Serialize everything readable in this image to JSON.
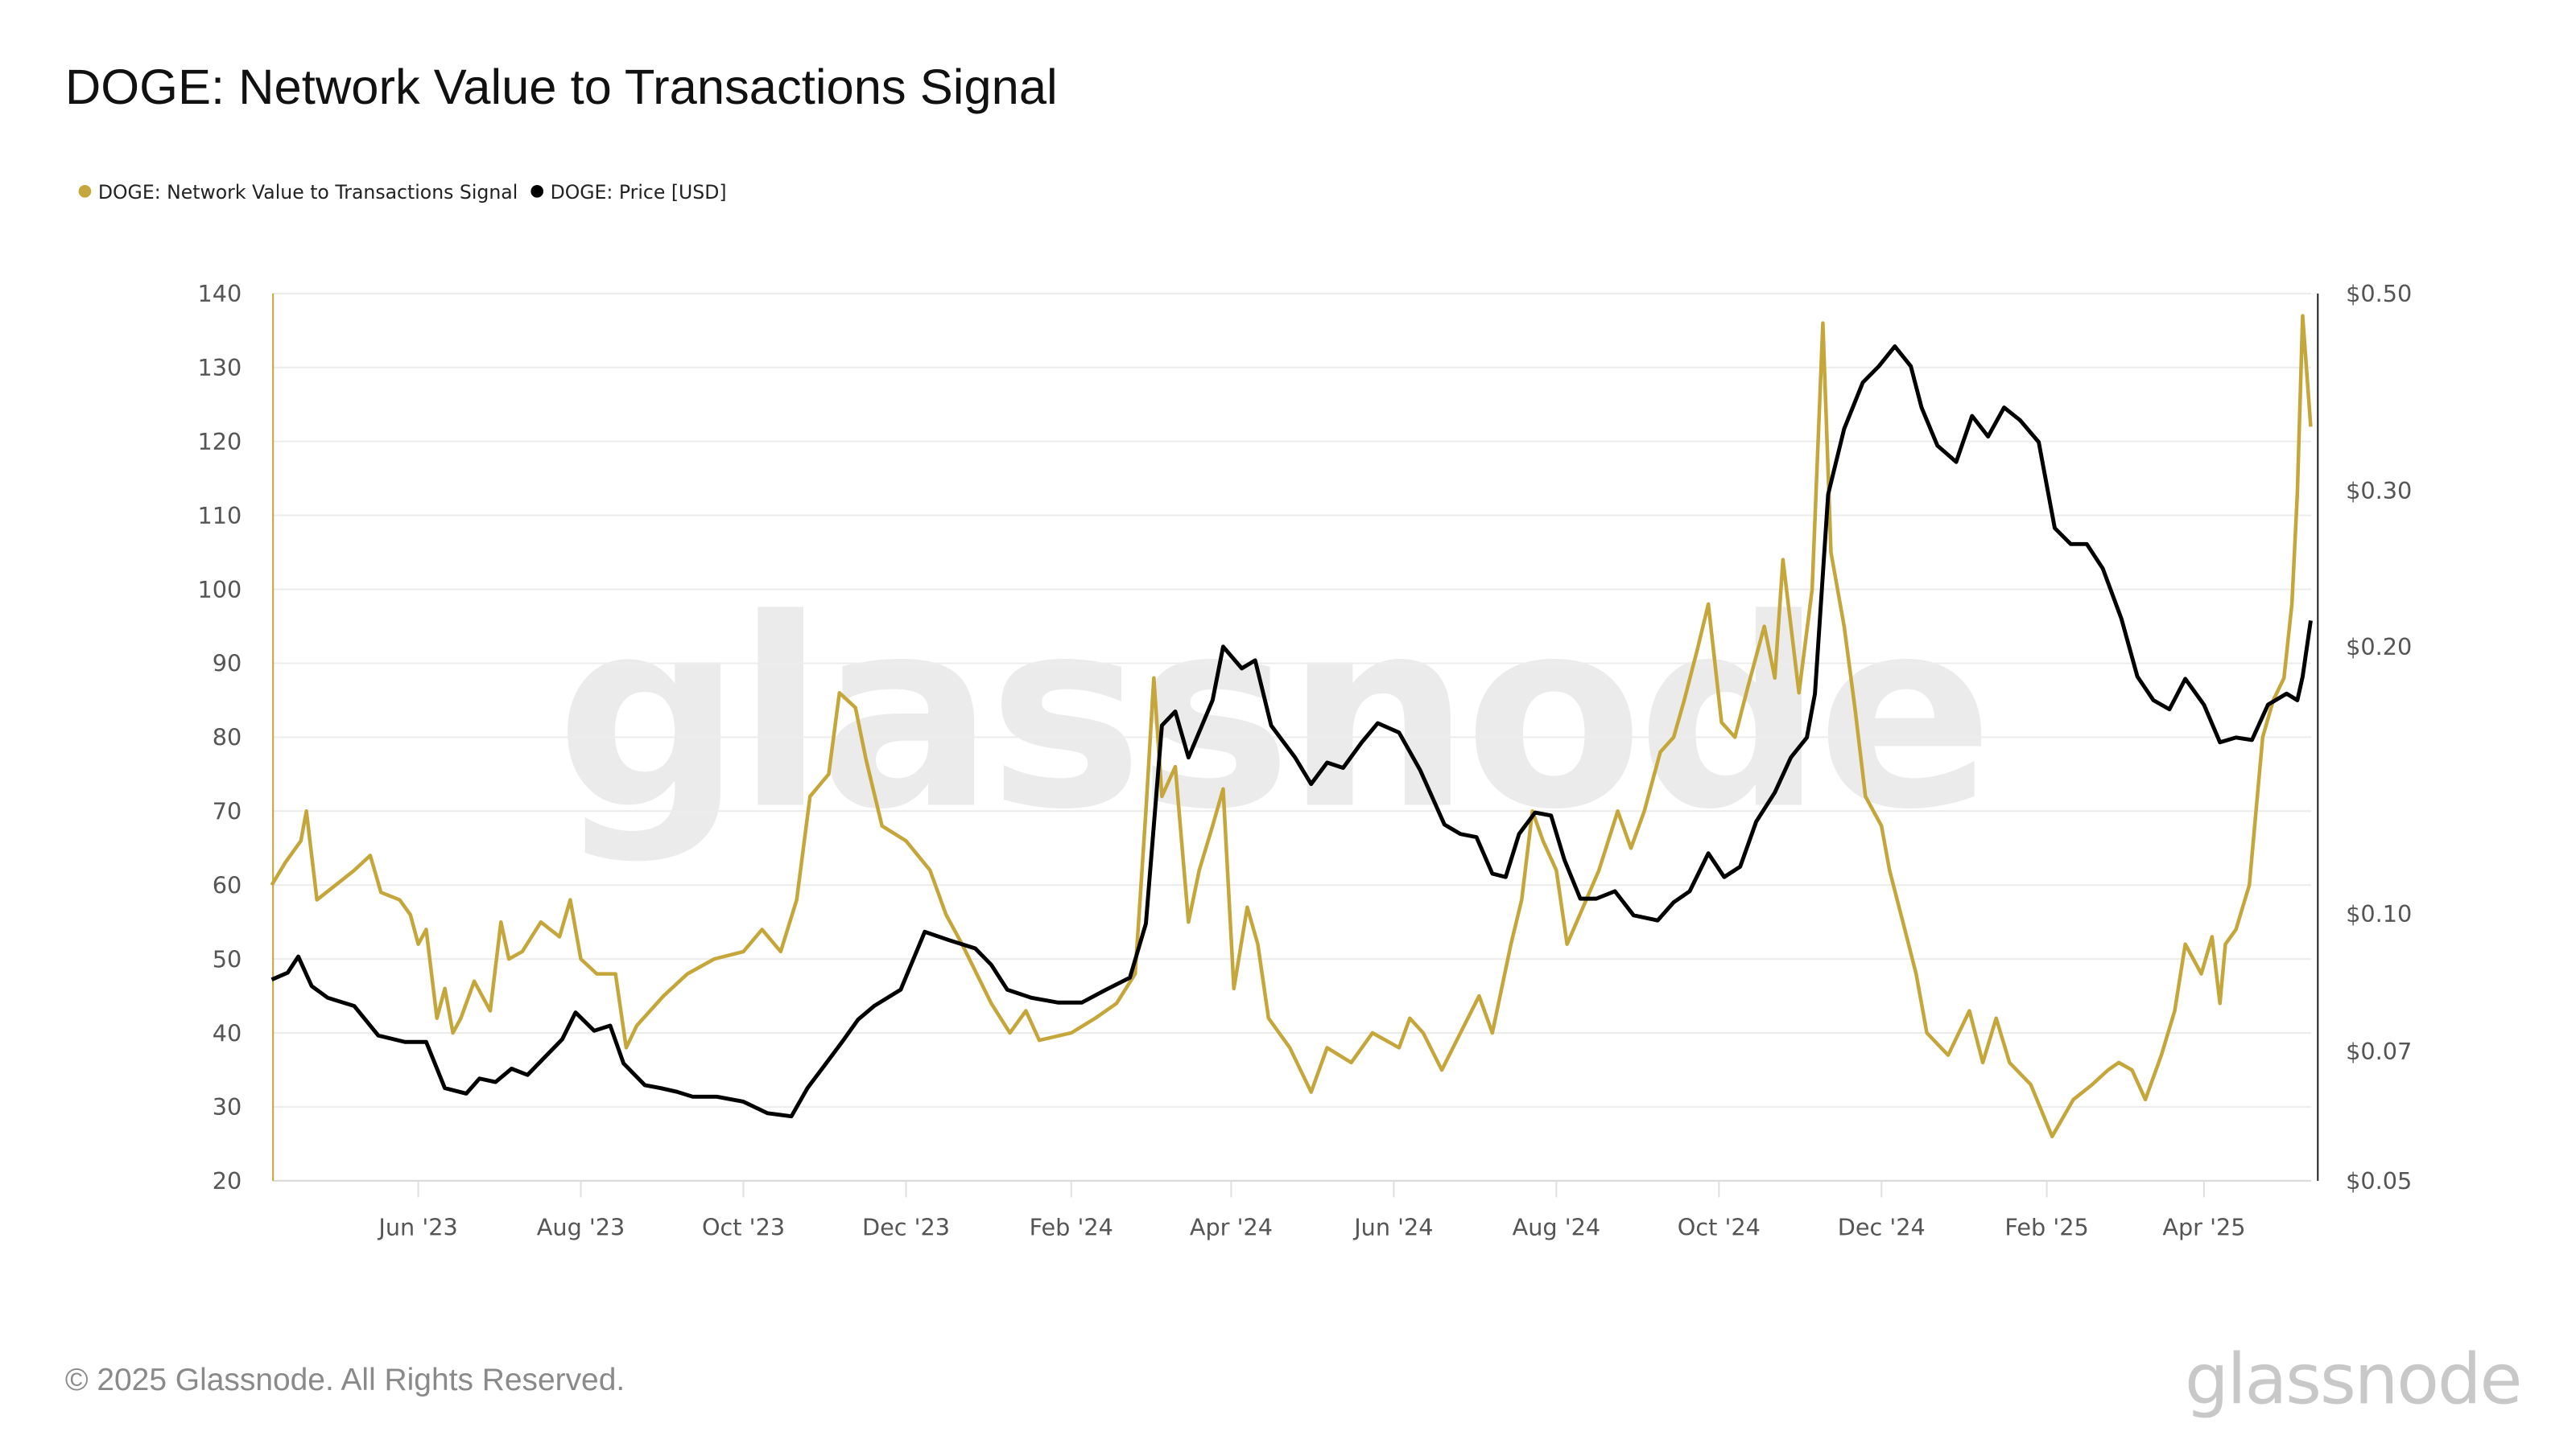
{
  "footer": {
    "copyright": "© 2025 Glassnode. All Rights Reserved.",
    "logo": "glassnode"
  },
  "watermark": "glassnode",
  "colors": {
    "nvts": "#c5a63a",
    "price": "#000000",
    "grid": "#ececec"
  },
  "chart_data": {
    "type": "line",
    "title": "DOGE: Network Value to Transactions Signal",
    "legend_position": "top-left",
    "grid": true,
    "x_ticks": [
      "Jun '23",
      "Aug '23",
      "Oct '23",
      "Dec '23",
      "Feb '24",
      "Apr '24",
      "Jun '24",
      "Aug '24",
      "Oct '24",
      "Dec '24",
      "Feb '25",
      "Apr '25"
    ],
    "x_tick_dates": [
      "2023-06-01",
      "2023-08-01",
      "2023-10-01",
      "2023-12-01",
      "2024-02-01",
      "2024-04-01",
      "2024-06-01",
      "2024-08-01",
      "2024-10-01",
      "2024-12-01",
      "2025-02-01",
      "2025-04-01"
    ],
    "xlim": [
      "2023-04-07",
      "2025-05-11"
    ],
    "y_left": {
      "ylim": [
        20,
        140
      ],
      "ticks": [
        20,
        30,
        40,
        50,
        60,
        70,
        80,
        90,
        100,
        110,
        120,
        130,
        140
      ],
      "tick_labels": [
        "20",
        "30",
        "40",
        "50",
        "60",
        "70",
        "80",
        "90",
        "100",
        "110",
        "120",
        "130",
        "140"
      ]
    },
    "y_right": {
      "scale": "log",
      "ylim": [
        0.05,
        0.5
      ],
      "ticks": [
        0.05,
        0.07,
        0.1,
        0.2,
        0.3,
        0.5
      ],
      "tick_labels": [
        "$0.05",
        "$0.07",
        "$0.10",
        "$0.20",
        "$0.30",
        "$0.50"
      ]
    },
    "series": [
      {
        "name": "DOGE: Network Value to Transactions Signal",
        "axis": "left",
        "points": [
          [
            "2023-04-07",
            60
          ],
          [
            "2023-04-12",
            63
          ],
          [
            "2023-04-18",
            66
          ],
          [
            "2023-04-20",
            70
          ],
          [
            "2023-04-24",
            58
          ],
          [
            "2023-05-01",
            60
          ],
          [
            "2023-05-08",
            62
          ],
          [
            "2023-05-14",
            64
          ],
          [
            "2023-05-18",
            59
          ],
          [
            "2023-05-25",
            58
          ],
          [
            "2023-05-29",
            56
          ],
          [
            "2023-06-01",
            52
          ],
          [
            "2023-06-04",
            54
          ],
          [
            "2023-06-08",
            42
          ],
          [
            "2023-06-11",
            46
          ],
          [
            "2023-06-14",
            40
          ],
          [
            "2023-06-17",
            42
          ],
          [
            "2023-06-22",
            47
          ],
          [
            "2023-06-28",
            43
          ],
          [
            "2023-07-02",
            55
          ],
          [
            "2023-07-05",
            50
          ],
          [
            "2023-07-10",
            51
          ],
          [
            "2023-07-17",
            55
          ],
          [
            "2023-07-24",
            53
          ],
          [
            "2023-07-28",
            58
          ],
          [
            "2023-08-01",
            50
          ],
          [
            "2023-08-07",
            48
          ],
          [
            "2023-08-14",
            48
          ],
          [
            "2023-08-18",
            38
          ],
          [
            "2023-08-22",
            41
          ],
          [
            "2023-09-01",
            45
          ],
          [
            "2023-09-10",
            48
          ],
          [
            "2023-09-20",
            50
          ],
          [
            "2023-10-01",
            51
          ],
          [
            "2023-10-08",
            54
          ],
          [
            "2023-10-15",
            51
          ],
          [
            "2023-10-21",
            58
          ],
          [
            "2023-10-26",
            72
          ],
          [
            "2023-11-02",
            75
          ],
          [
            "2023-11-06",
            86
          ],
          [
            "2023-11-12",
            84
          ],
          [
            "2023-11-16",
            77
          ],
          [
            "2023-11-22",
            68
          ],
          [
            "2023-12-01",
            66
          ],
          [
            "2023-12-10",
            62
          ],
          [
            "2023-12-16",
            56
          ],
          [
            "2023-12-22",
            52
          ],
          [
            "2024-01-02",
            44
          ],
          [
            "2024-01-09",
            40
          ],
          [
            "2024-01-15",
            43
          ],
          [
            "2024-01-20",
            39
          ],
          [
            "2024-02-01",
            40
          ],
          [
            "2024-02-10",
            42
          ],
          [
            "2024-02-18",
            44
          ],
          [
            "2024-02-25",
            48
          ],
          [
            "2024-02-29",
            70
          ],
          [
            "2024-03-03",
            88
          ],
          [
            "2024-03-06",
            72
          ],
          [
            "2024-03-11",
            76
          ],
          [
            "2024-03-16",
            55
          ],
          [
            "2024-03-20",
            62
          ],
          [
            "2024-03-25",
            68
          ],
          [
            "2024-03-29",
            73
          ],
          [
            "2024-04-02",
            46
          ],
          [
            "2024-04-07",
            57
          ],
          [
            "2024-04-11",
            52
          ],
          [
            "2024-04-15",
            42
          ],
          [
            "2024-04-23",
            38
          ],
          [
            "2024-05-01",
            32
          ],
          [
            "2024-05-07",
            38
          ],
          [
            "2024-05-16",
            36
          ],
          [
            "2024-05-24",
            40
          ],
          [
            "2024-06-03",
            38
          ],
          [
            "2024-06-07",
            42
          ],
          [
            "2024-06-12",
            40
          ],
          [
            "2024-06-19",
            35
          ],
          [
            "2024-06-26",
            40
          ],
          [
            "2024-07-03",
            45
          ],
          [
            "2024-07-08",
            40
          ],
          [
            "2024-07-15",
            52
          ],
          [
            "2024-07-19",
            58
          ],
          [
            "2024-07-23",
            70
          ],
          [
            "2024-07-27",
            66
          ],
          [
            "2024-08-01",
            62
          ],
          [
            "2024-08-05",
            52
          ],
          [
            "2024-08-11",
            57
          ],
          [
            "2024-08-17",
            62
          ],
          [
            "2024-08-24",
            70
          ],
          [
            "2024-08-29",
            65
          ],
          [
            "2024-09-03",
            70
          ],
          [
            "2024-09-09",
            78
          ],
          [
            "2024-09-14",
            80
          ],
          [
            "2024-09-18",
            85
          ],
          [
            "2024-09-23",
            92
          ],
          [
            "2024-09-27",
            98
          ],
          [
            "2024-10-02",
            82
          ],
          [
            "2024-10-07",
            80
          ],
          [
            "2024-10-12",
            87
          ],
          [
            "2024-10-18",
            95
          ],
          [
            "2024-10-22",
            88
          ],
          [
            "2024-10-25",
            104
          ],
          [
            "2024-10-31",
            86
          ],
          [
            "2024-11-05",
            100
          ],
          [
            "2024-11-09",
            136
          ],
          [
            "2024-11-12",
            105
          ],
          [
            "2024-11-17",
            95
          ],
          [
            "2024-11-21",
            84
          ],
          [
            "2024-11-25",
            72
          ],
          [
            "2024-12-01",
            68
          ],
          [
            "2024-12-04",
            62
          ],
          [
            "2024-12-09",
            55
          ],
          [
            "2024-12-14",
            48
          ],
          [
            "2024-12-18",
            40
          ],
          [
            "2024-12-26",
            37
          ],
          [
            "2025-01-03",
            43
          ],
          [
            "2025-01-08",
            36
          ],
          [
            "2025-01-13",
            42
          ],
          [
            "2025-01-18",
            36
          ],
          [
            "2025-01-26",
            33
          ],
          [
            "2025-02-03",
            26
          ],
          [
            "2025-02-11",
            31
          ],
          [
            "2025-02-18",
            33
          ],
          [
            "2025-02-24",
            35
          ],
          [
            "2025-02-28",
            36
          ],
          [
            "2025-03-05",
            35
          ],
          [
            "2025-03-10",
            31
          ],
          [
            "2025-03-16",
            37
          ],
          [
            "2025-03-21",
            43
          ],
          [
            "2025-03-25",
            52
          ],
          [
            "2025-03-31",
            48
          ],
          [
            "2025-04-04",
            53
          ],
          [
            "2025-04-07",
            44
          ],
          [
            "2025-04-09",
            52
          ],
          [
            "2025-04-13",
            54
          ],
          [
            "2025-04-18",
            60
          ],
          [
            "2025-04-23",
            80
          ],
          [
            "2025-04-27",
            85
          ],
          [
            "2025-05-01",
            88
          ],
          [
            "2025-05-04",
            98
          ],
          [
            "2025-05-06",
            113
          ],
          [
            "2025-05-08",
            137
          ],
          [
            "2025-05-11",
            122
          ]
        ]
      },
      {
        "name": "DOGE: Price [USD]",
        "axis": "right",
        "points": [
          [
            "2023-04-07",
            0.0843
          ],
          [
            "2023-04-13",
            0.0858
          ],
          [
            "2023-04-17",
            0.0895
          ],
          [
            "2023-04-22",
            0.0829
          ],
          [
            "2023-04-28",
            0.0804
          ],
          [
            "2023-05-08",
            0.0787
          ],
          [
            "2023-05-17",
            0.0729
          ],
          [
            "2023-05-27",
            0.0717
          ],
          [
            "2023-06-04",
            0.0717
          ],
          [
            "2023-06-11",
            0.0636
          ],
          [
            "2023-06-19",
            0.0627
          ],
          [
            "2023-06-24",
            0.0652
          ],
          [
            "2023-06-30",
            0.0646
          ],
          [
            "2023-07-06",
            0.0669
          ],
          [
            "2023-07-12",
            0.0658
          ],
          [
            "2023-07-18",
            0.0687
          ],
          [
            "2023-07-25",
            0.0722
          ],
          [
            "2023-07-30",
            0.0774
          ],
          [
            "2023-08-06",
            0.0738
          ],
          [
            "2023-08-12",
            0.0748
          ],
          [
            "2023-08-17",
            0.0678
          ],
          [
            "2023-08-25",
            0.0641
          ],
          [
            "2023-08-31",
            0.0636
          ],
          [
            "2023-09-06",
            0.063
          ],
          [
            "2023-09-12",
            0.0622
          ],
          [
            "2023-09-21",
            0.0622
          ],
          [
            "2023-10-01",
            0.0614
          ],
          [
            "2023-10-10",
            0.0596
          ],
          [
            "2023-10-19",
            0.0591
          ],
          [
            "2023-10-25",
            0.0636
          ],
          [
            "2023-11-01",
            0.0678
          ],
          [
            "2023-11-07",
            0.0717
          ],
          [
            "2023-11-13",
            0.076
          ],
          [
            "2023-11-19",
            0.0787
          ],
          [
            "2023-11-29",
            0.0821
          ],
          [
            "2023-12-08",
            0.0954
          ],
          [
            "2023-12-17",
            0.0934
          ],
          [
            "2023-12-27",
            0.0914
          ],
          [
            "2024-01-02",
            0.0876
          ],
          [
            "2024-01-08",
            0.0821
          ],
          [
            "2024-01-17",
            0.0804
          ],
          [
            "2024-01-27",
            0.0794
          ],
          [
            "2024-02-05",
            0.0794
          ],
          [
            "2024-02-14",
            0.0821
          ],
          [
            "2024-02-23",
            0.0847
          ],
          [
            "2024-02-29",
            0.0975
          ],
          [
            "2024-03-06",
            0.163
          ],
          [
            "2024-03-11",
            0.169
          ],
          [
            "2024-03-16",
            0.15
          ],
          [
            "2024-03-25",
            0.174
          ],
          [
            "2024-03-29",
            0.2
          ],
          [
            "2024-04-05",
            0.189
          ],
          [
            "2024-04-10",
            0.193
          ],
          [
            "2024-04-16",
            0.163
          ],
          [
            "2024-04-25",
            0.15
          ],
          [
            "2024-05-01",
            0.14
          ],
          [
            "2024-05-07",
            0.148
          ],
          [
            "2024-05-13",
            0.146
          ],
          [
            "2024-05-20",
            0.156
          ],
          [
            "2024-05-26",
            0.164
          ],
          [
            "2024-06-03",
            0.16
          ],
          [
            "2024-06-11",
            0.145
          ],
          [
            "2024-06-20",
            0.126
          ],
          [
            "2024-06-26",
            0.123
          ],
          [
            "2024-07-02",
            0.122
          ],
          [
            "2024-07-08",
            0.111
          ],
          [
            "2024-07-13",
            0.11
          ],
          [
            "2024-07-18",
            0.123
          ],
          [
            "2024-07-24",
            0.13
          ],
          [
            "2024-07-30",
            0.129
          ],
          [
            "2024-08-04",
            0.115
          ],
          [
            "2024-08-10",
            0.104
          ],
          [
            "2024-08-16",
            0.104
          ],
          [
            "2024-08-23",
            0.106
          ],
          [
            "2024-08-30",
            0.0996
          ],
          [
            "2024-09-08",
            0.0983
          ],
          [
            "2024-09-14",
            0.103
          ],
          [
            "2024-09-20",
            0.106
          ],
          [
            "2024-09-27",
            0.117
          ],
          [
            "2024-10-03",
            0.11
          ],
          [
            "2024-10-09",
            0.113
          ],
          [
            "2024-10-15",
            0.127
          ],
          [
            "2024-10-22",
            0.137
          ],
          [
            "2024-10-28",
            0.15
          ],
          [
            "2024-11-03",
            0.158
          ],
          [
            "2024-11-06",
            0.177
          ],
          [
            "2024-11-11",
            0.297
          ],
          [
            "2024-11-17",
            0.352
          ],
          [
            "2024-11-24",
            0.397
          ],
          [
            "2024-11-30",
            0.414
          ],
          [
            "2024-12-06",
            0.436
          ],
          [
            "2024-12-12",
            0.414
          ],
          [
            "2024-12-16",
            0.372
          ],
          [
            "2024-12-22",
            0.337
          ],
          [
            "2024-12-29",
            0.323
          ],
          [
            "2025-01-04",
            0.364
          ],
          [
            "2025-01-10",
            0.345
          ],
          [
            "2025-01-16",
            0.372
          ],
          [
            "2025-01-22",
            0.36
          ],
          [
            "2025-01-29",
            0.34
          ],
          [
            "2025-02-04",
            0.272
          ],
          [
            "2025-02-10",
            0.261
          ],
          [
            "2025-02-16",
            0.261
          ],
          [
            "2025-02-22",
            0.245
          ],
          [
            "2025-03-01",
            0.215
          ],
          [
            "2025-03-07",
            0.185
          ],
          [
            "2025-03-13",
            0.174
          ],
          [
            "2025-03-19",
            0.17
          ],
          [
            "2025-03-25",
            0.184
          ],
          [
            "2025-04-01",
            0.172
          ],
          [
            "2025-04-07",
            0.156
          ],
          [
            "2025-04-13",
            0.158
          ],
          [
            "2025-04-19",
            0.157
          ],
          [
            "2025-04-25",
            0.172
          ],
          [
            "2025-05-02",
            0.177
          ],
          [
            "2025-05-06",
            0.174
          ],
          [
            "2025-05-08",
            0.185
          ],
          [
            "2025-05-11",
            0.214
          ]
        ]
      }
    ]
  }
}
